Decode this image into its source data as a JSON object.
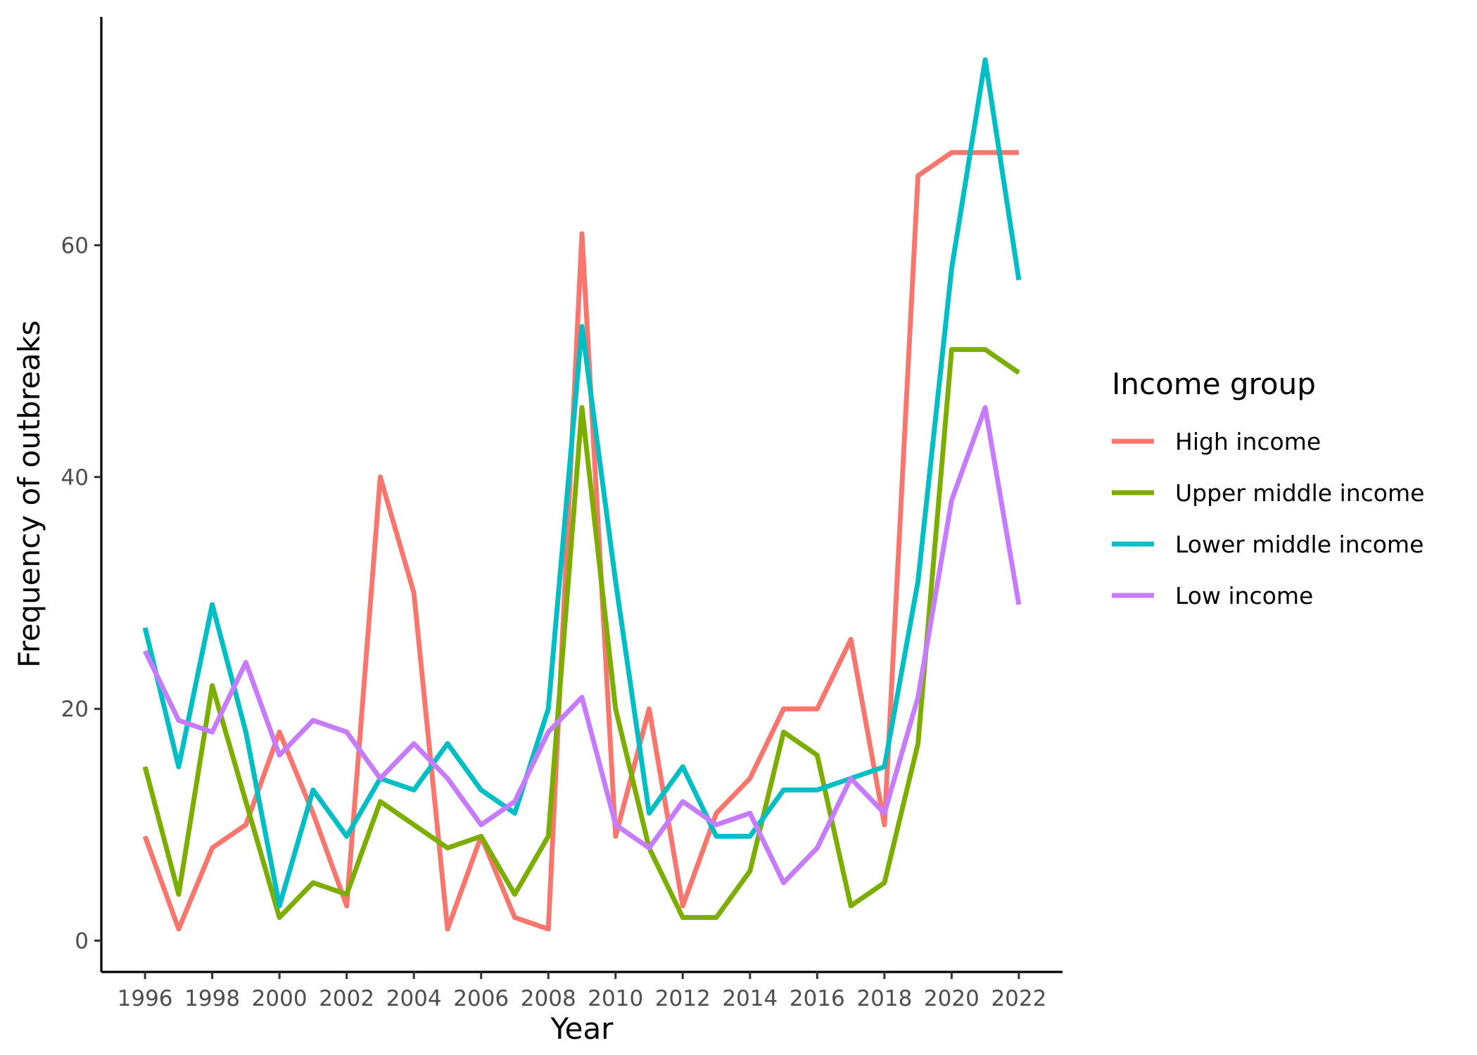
{
  "chart_data": {
    "type": "line",
    "xlabel": "Year",
    "ylabel": "Frequency of outbreaks",
    "x": [
      1996,
      1997,
      1998,
      1999,
      2000,
      2001,
      2002,
      2003,
      2004,
      2005,
      2006,
      2007,
      2008,
      2009,
      2010,
      2011,
      2012,
      2013,
      2014,
      2015,
      2016,
      2017,
      2018,
      2019,
      2020,
      2021,
      2022
    ],
    "x_ticks": [
      "1996",
      "1998",
      "2000",
      "2002",
      "2004",
      "2006",
      "2008",
      "2010",
      "2012",
      "2014",
      "2016",
      "2018",
      "2020",
      "2022"
    ],
    "y_ticks": [
      "0",
      "20",
      "40",
      "60"
    ],
    "xlim": [
      1994.7,
      2023.3
    ],
    "ylim": [
      -2.7,
      79.7
    ],
    "grid": false,
    "legend": {
      "title": "Income group",
      "position": "right"
    },
    "series": [
      {
        "name": "High income",
        "color": "#F8766D",
        "values": [
          9,
          1,
          8,
          10,
          18,
          11,
          3,
          40,
          30,
          1,
          9,
          2,
          1,
          61,
          9,
          20,
          3,
          11,
          14,
          20,
          20,
          26,
          10,
          66,
          68,
          68,
          68
        ]
      },
      {
        "name": "Upper middle income",
        "color": "#7CAE00",
        "values": [
          15,
          4,
          22,
          12,
          2,
          5,
          4,
          12,
          10,
          8,
          9,
          4,
          9,
          46,
          20,
          8,
          2,
          2,
          6,
          18,
          16,
          3,
          5,
          17,
          51,
          51,
          49
        ]
      },
      {
        "name": "Lower middle income",
        "color": "#00BFC4",
        "values": [
          27,
          15,
          29,
          18,
          3,
          13,
          9,
          14,
          13,
          17,
          13,
          11,
          20,
          53,
          31,
          11,
          15,
          9,
          9,
          13,
          13,
          14,
          15,
          31,
          58,
          76,
          57
        ]
      },
      {
        "name": "Low income",
        "color": "#C77CFF",
        "values": [
          25,
          19,
          18,
          24,
          16,
          19,
          18,
          14,
          17,
          14,
          10,
          12,
          18,
          21,
          10,
          8,
          12,
          10,
          11,
          5,
          8,
          14,
          11,
          21,
          38,
          46,
          29
        ]
      }
    ]
  }
}
